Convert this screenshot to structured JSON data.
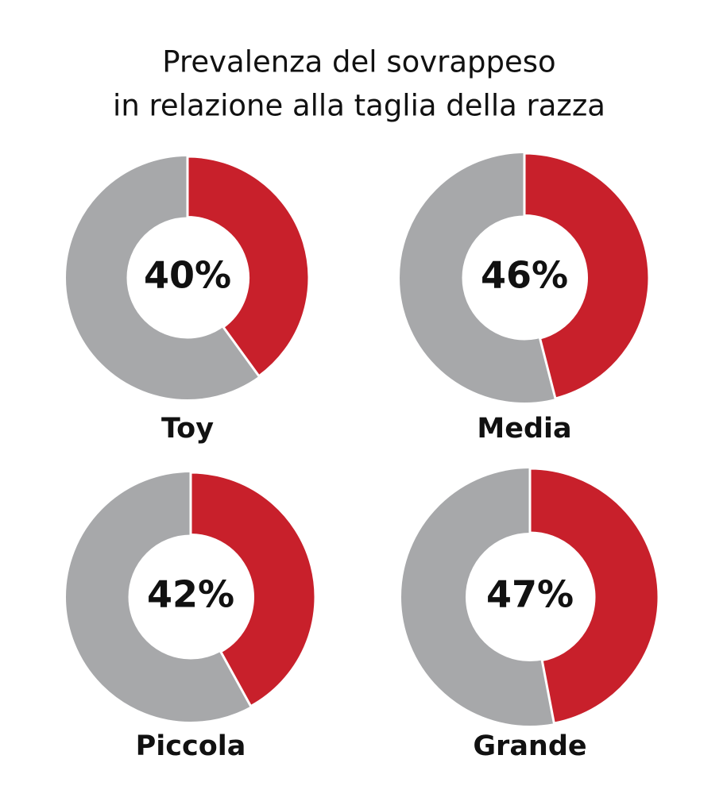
{
  "title": [
    "Prevalenza del sovrappeso",
    "in relazione alla taglia della razza"
  ],
  "chart_data": [
    {
      "type": "donut",
      "label": "Toy",
      "values": [
        40
      ],
      "value_labels": [
        "40%"
      ],
      "color": "#c8202b",
      "track_color": "#a7a8aa"
    },
    {
      "type": "donut",
      "label": "Media",
      "values": [
        46
      ],
      "value_labels": [
        "46%"
      ],
      "color": "#c8202b",
      "track_color": "#a7a8aa"
    },
    {
      "type": "donut",
      "label": "Piccola",
      "values": [
        42
      ],
      "value_labels": [
        "42%"
      ],
      "color": "#c8202b",
      "track_color": "#a7a8aa"
    },
    {
      "type": "donut",
      "label": "Grande",
      "values": [
        47
      ],
      "value_labels": [
        "47%"
      ],
      "color": "#c8202b",
      "track_color": "#a7a8aa"
    }
  ]
}
